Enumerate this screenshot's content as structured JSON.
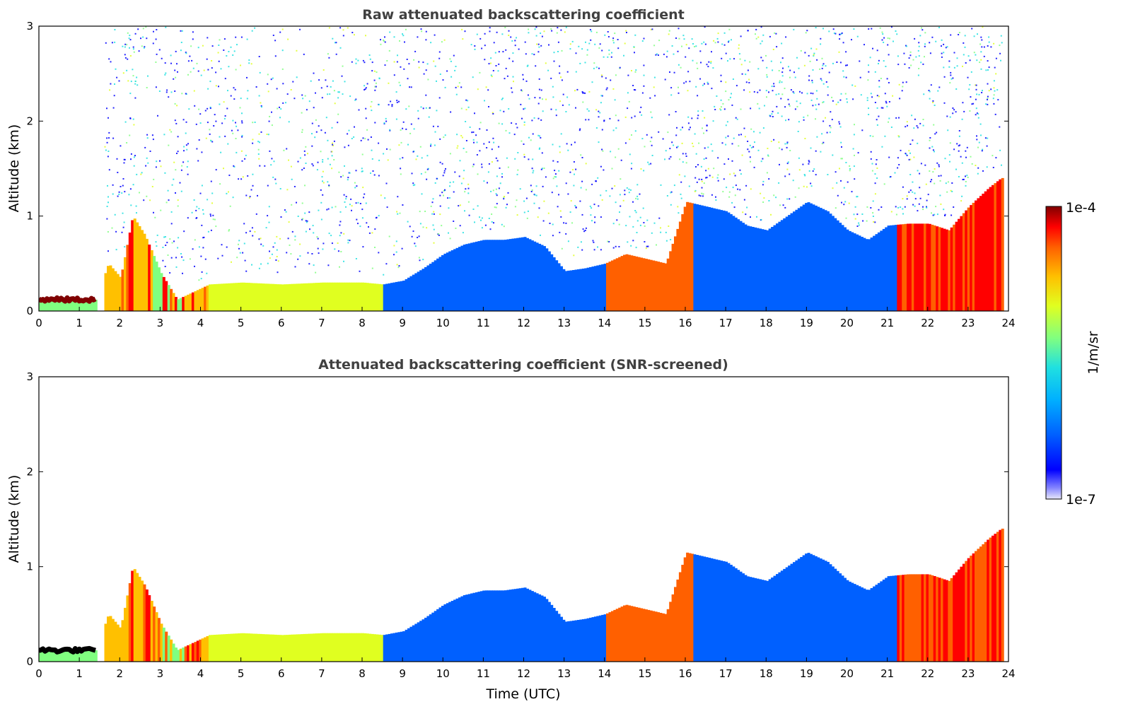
{
  "chart_data": [
    {
      "type": "heatmap",
      "title": "Raw attenuated backscattering coefficient",
      "xlabel": "",
      "ylabel": "Altitude (km)",
      "xlim": [
        0,
        24
      ],
      "ylim": [
        0,
        3
      ],
      "xticks": [
        "0",
        "1",
        "2",
        "3",
        "4",
        "5",
        "6",
        "7",
        "8",
        "9",
        "10",
        "11",
        "12",
        "13",
        "14",
        "15",
        "16",
        "17",
        "18",
        "19",
        "20",
        "21",
        "22",
        "23",
        "24"
      ],
      "yticks": [
        "0",
        "1",
        "2",
        "3"
      ],
      "boundary_layer_top_km": {
        "time_utc": [
          0,
          1.4,
          1.7,
          2.0,
          2.3,
          2.6,
          3.0,
          3.4,
          3.8,
          4.2,
          5,
          6,
          7,
          8,
          8.5,
          9,
          9.5,
          10,
          10.5,
          11,
          11.5,
          12,
          12.5,
          13,
          13.5,
          14,
          14.5,
          15,
          15.5,
          16,
          16.5,
          17,
          17.5,
          18,
          18.5,
          19,
          19.5,
          20,
          20.5,
          21,
          21.5,
          22,
          22.5,
          23,
          23.5,
          23.8
        ],
        "altitude_km": [
          0.12,
          0.12,
          0.5,
          0.35,
          1.0,
          0.8,
          0.4,
          0.12,
          0.2,
          0.28,
          0.3,
          0.28,
          0.3,
          0.3,
          0.28,
          0.32,
          0.45,
          0.6,
          0.7,
          0.75,
          0.75,
          0.78,
          0.68,
          0.42,
          0.45,
          0.5,
          0.6,
          0.55,
          0.5,
          1.15,
          1.1,
          1.05,
          0.9,
          0.85,
          1.0,
          1.15,
          1.05,
          0.85,
          0.75,
          0.9,
          0.92,
          0.92,
          0.85,
          1.1,
          1.3,
          1.4
        ]
      },
      "missing_data_utc": [
        1.55
      ]
    },
    {
      "type": "heatmap",
      "title": "Attenuated backscattering coefficient (SNR-screened)",
      "xlabel": "Time (UTC)",
      "ylabel": "Altitude (km)",
      "xlim": [
        0,
        24
      ],
      "ylim": [
        0,
        3
      ],
      "xticks": [
        "0",
        "1",
        "2",
        "3",
        "4",
        "5",
        "6",
        "7",
        "8",
        "9",
        "10",
        "11",
        "12",
        "13",
        "14",
        "15",
        "16",
        "17",
        "18",
        "19",
        "20",
        "21",
        "22",
        "23",
        "24"
      ],
      "yticks": [
        "0",
        "1",
        "2",
        "3"
      ]
    }
  ],
  "colorbar": {
    "label": "1/m/sr",
    "max_label": "1e-4",
    "min_label": "1e-7",
    "scale": "log",
    "colormap": "jet",
    "colors": [
      "#e8e8f8",
      "#8080ff",
      "#0000ff",
      "#0060ff",
      "#00b0ff",
      "#20e0e0",
      "#80ff80",
      "#e0ff20",
      "#ffc000",
      "#ff6000",
      "#ff0000",
      "#b00000",
      "#800000"
    ]
  }
}
